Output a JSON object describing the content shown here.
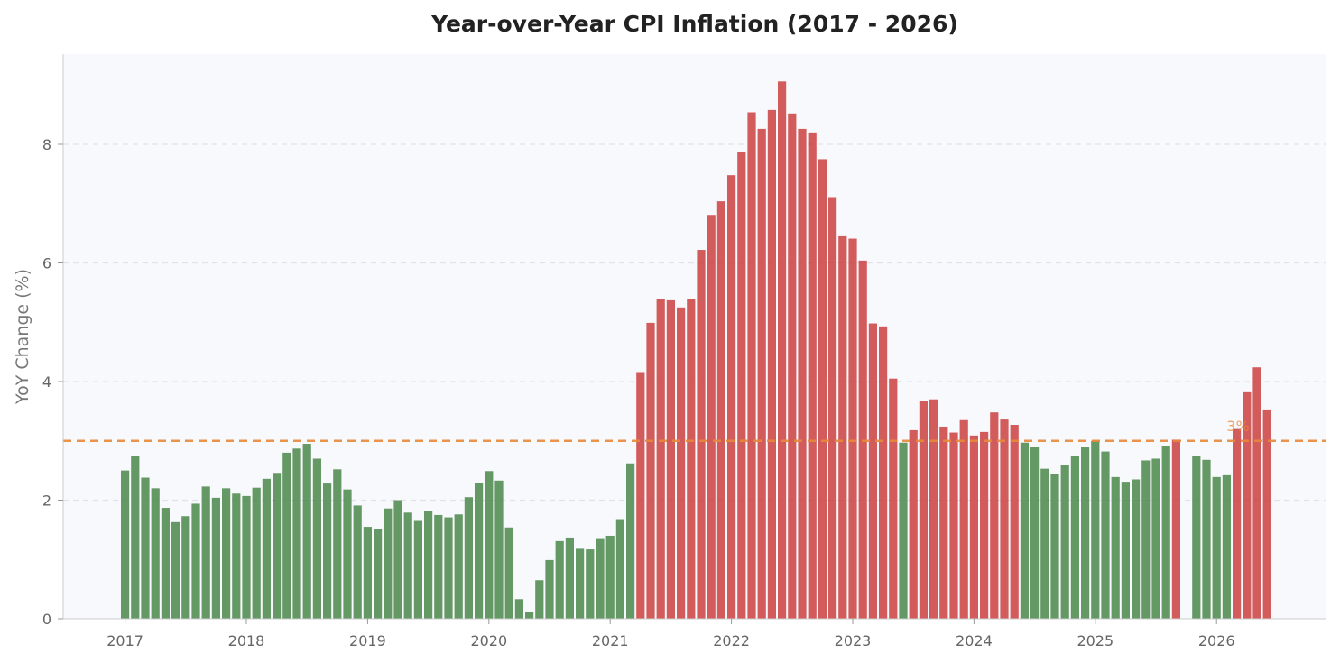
{
  "chart_data": {
    "type": "bar",
    "title": "Year-over-Year CPI Inflation (2017 - 2026)",
    "xlabel": "",
    "ylabel": "YoY Change (%)",
    "start": "2017-01",
    "x_tick_labels": [
      "2017",
      "2018",
      "2019",
      "2020",
      "2021",
      "2022",
      "2023",
      "2024",
      "2025",
      "2026"
    ],
    "y_ticks": [
      0,
      2,
      4,
      6,
      8
    ],
    "ylim": [
      0,
      9.55
    ],
    "grid": "horizontal dashed",
    "reference_line": {
      "value": 3,
      "label": "3%",
      "color": "#e8893a"
    },
    "colors": {
      "below": "#4f8a4f",
      "above": "#cc4444",
      "plot_bg": "#f8f9fc",
      "grid": "#dfe3e8"
    },
    "values": [
      2.5,
      2.74,
      2.38,
      2.2,
      1.87,
      1.63,
      1.73,
      1.94,
      2.23,
      2.04,
      2.2,
      2.11,
      2.07,
      2.21,
      2.36,
      2.46,
      2.8,
      2.87,
      2.95,
      2.7,
      2.28,
      2.52,
      2.18,
      1.91,
      1.55,
      1.52,
      1.86,
      2.0,
      1.79,
      1.65,
      1.81,
      1.75,
      1.71,
      1.76,
      2.05,
      2.29,
      2.49,
      2.33,
      1.54,
      0.33,
      0.12,
      0.65,
      0.99,
      1.31,
      1.37,
      1.18,
      1.17,
      1.36,
      1.4,
      1.68,
      2.62,
      4.16,
      4.99,
      5.39,
      5.37,
      5.25,
      5.39,
      6.22,
      6.81,
      7.04,
      7.48,
      7.87,
      8.54,
      8.26,
      8.58,
      9.06,
      8.52,
      8.26,
      8.2,
      7.75,
      7.11,
      6.45,
      6.41,
      6.04,
      4.98,
      4.93,
      4.05,
      2.97,
      3.18,
      3.67,
      3.7,
      3.24,
      3.14,
      3.35,
      3.09,
      3.15,
      3.48,
      3.36,
      3.27,
      2.97,
      2.89,
      2.53,
      2.44,
      2.6,
      2.75,
      2.89,
      3.0,
      2.82,
      2.39,
      2.31,
      2.35,
      2.67,
      2.7,
      2.92,
      3.02,
      null,
      2.74,
      2.68,
      2.39,
      2.42,
      3.2,
      3.82,
      4.24,
      3.53
    ]
  }
}
